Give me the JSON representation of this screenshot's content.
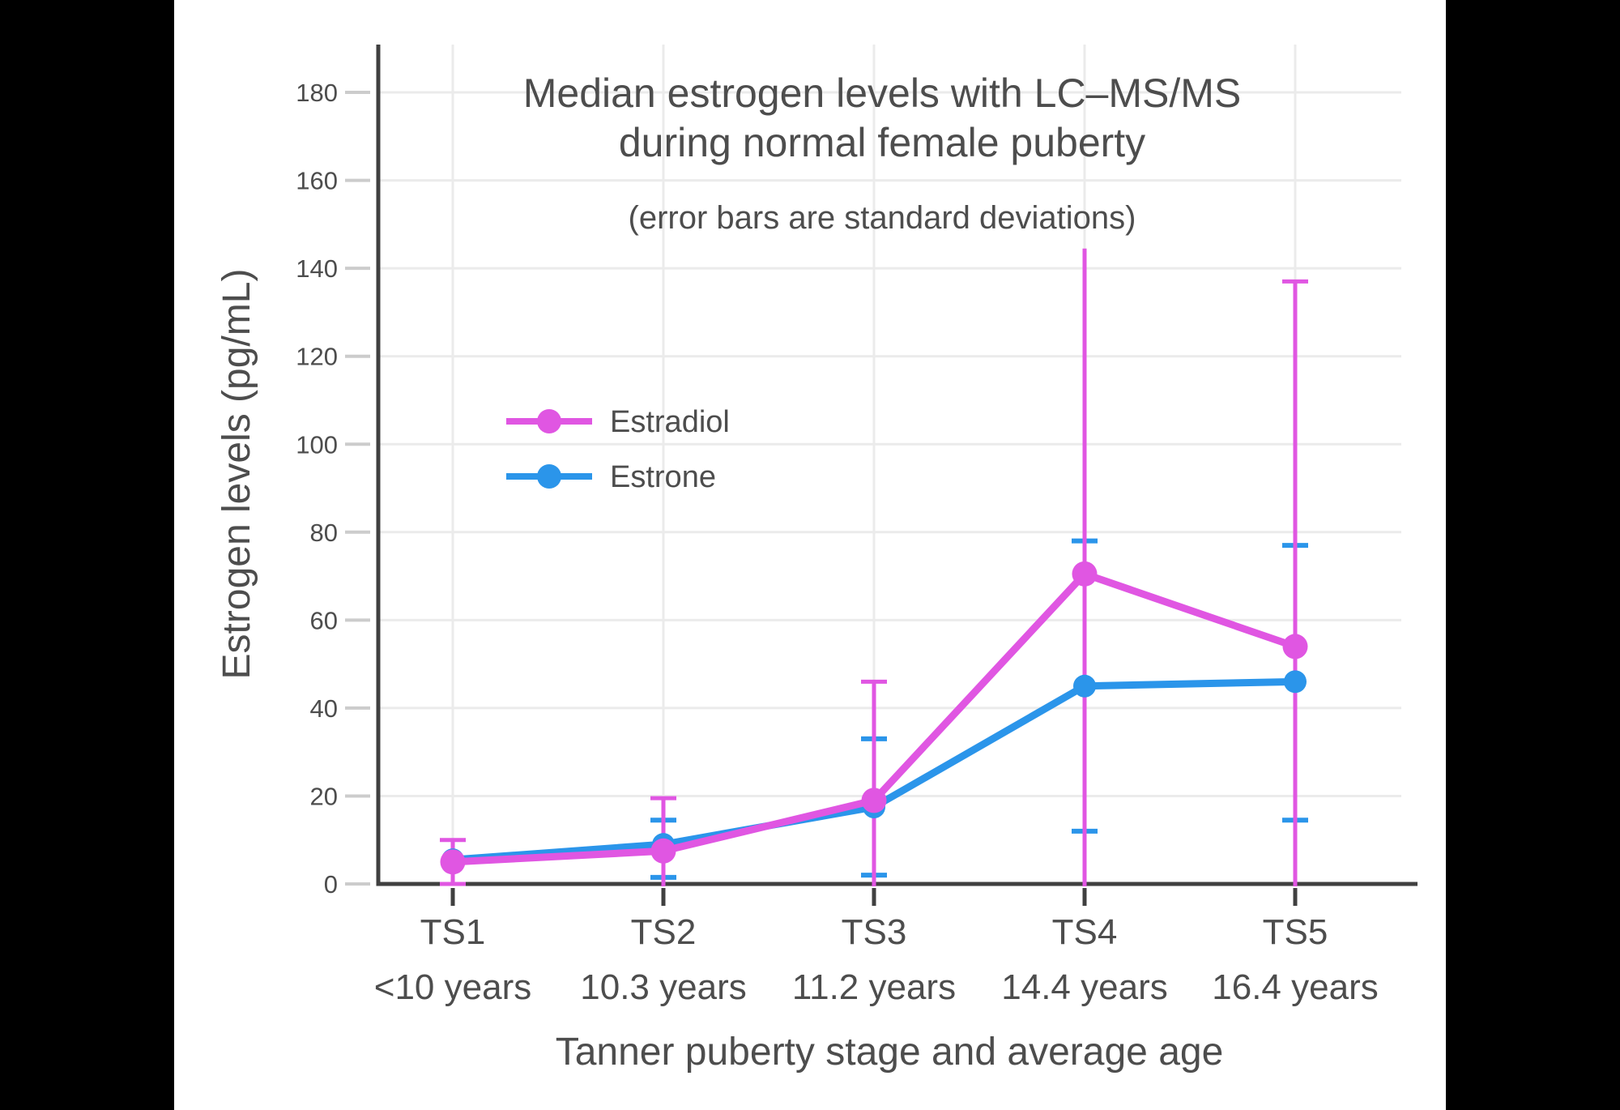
{
  "window": {
    "background": "#000000",
    "panel_background": "#ffffff"
  },
  "header": {
    "title_line1": "Median estrogen levels with LC–MS/MS",
    "title_line2": "during normal female puberty",
    "subtitle": "(error bars are standard deviations)"
  },
  "axes": {
    "y_title": "Estrogen levels (pg/mL)",
    "x_title": "Tanner puberty stage and average age"
  },
  "colors": {
    "axis_line": "#404040",
    "grid_line": "#ebebeb",
    "y_tick_dash": "#cccccc",
    "text": "#4d4d4d",
    "estradiol": "#E056E2",
    "estrone": "#2B95EA"
  },
  "chart_data": {
    "type": "line",
    "title": "Median estrogen levels with LC–MS/MS during normal female puberty",
    "subtitle": "(error bars are standard deviations)",
    "xlabel": "Tanner puberty stage and average age",
    "ylabel": "Estrogen levels (pg/mL)",
    "categories": [
      "TS1",
      "TS2",
      "TS3",
      "TS4",
      "TS5"
    ],
    "category_ages": [
      "<10 years",
      "10.3 years",
      "11.2 years",
      "14.4 years",
      "16.4 years"
    ],
    "ylim": [
      0,
      190
    ],
    "yticks": [
      0,
      20,
      40,
      60,
      80,
      100,
      120,
      140,
      160,
      180
    ],
    "grid": true,
    "legend_position": "inside-upper-left",
    "error_bar_meaning": "standard deviations",
    "series": [
      {
        "name": "Estradiol",
        "color": "#E056E2",
        "values": [
          5,
          7.5,
          19,
          70.5,
          54
        ],
        "error_high": [
          10,
          19.5,
          46,
          144.5,
          137
        ],
        "error_high_cap": [
          true,
          true,
          true,
          false,
          true
        ],
        "error_low": [
          0,
          0,
          0,
          0,
          0
        ],
        "error_low_cap": [
          true,
          false,
          false,
          false,
          false
        ],
        "error_low_clipped": [
          false,
          true,
          true,
          true,
          true
        ]
      },
      {
        "name": "Estrone",
        "color": "#2B95EA",
        "values": [
          5.5,
          9,
          17.5,
          45,
          46
        ],
        "error_high": [
          null,
          14.5,
          33,
          78,
          77
        ],
        "error_high_cap": [
          false,
          true,
          true,
          true,
          true
        ],
        "error_low": [
          null,
          1.5,
          2,
          12,
          14.5
        ],
        "error_low_cap": [
          false,
          true,
          true,
          true,
          true
        ],
        "error_low_clipped": [
          false,
          false,
          false,
          false,
          false
        ]
      }
    ]
  }
}
